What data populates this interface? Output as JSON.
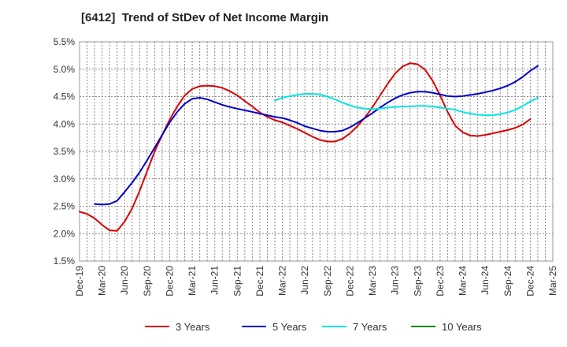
{
  "chart_data": {
    "type": "line",
    "title": "[6412]  Trend of StDev of Net Income Margin",
    "xlabel": "",
    "ylabel": "",
    "x_ticks": [
      "Dec-19",
      "Mar-20",
      "Jun-20",
      "Sep-20",
      "Dec-20",
      "Mar-21",
      "Jun-21",
      "Sep-21",
      "Dec-21",
      "Mar-22",
      "Jun-22",
      "Sep-22",
      "Dec-22",
      "Mar-23",
      "Jun-23",
      "Sep-23",
      "Dec-23",
      "Mar-24",
      "Jun-24",
      "Sep-24",
      "Dec-24",
      "Mar-25"
    ],
    "y_ticks": [
      "1.5%",
      "2.0%",
      "2.5%",
      "3.0%",
      "3.5%",
      "4.0%",
      "4.5%",
      "5.0%",
      "5.5%"
    ],
    "ylim": [
      1.5,
      5.5
    ],
    "y_unit": "%",
    "grid": true,
    "legend_position": "bottom",
    "series": [
      {
        "name": "3 Years",
        "color": "#dd0000",
        "points": [
          [
            "Dec-19",
            2.4
          ],
          [
            "Jan-20",
            2.36
          ],
          [
            "Feb-20",
            2.28
          ],
          [
            "Mar-20",
            2.16
          ],
          [
            "Apr-20",
            2.06
          ],
          [
            "May-20",
            2.05
          ],
          [
            "Jun-20",
            2.22
          ],
          [
            "Jul-20",
            2.46
          ],
          [
            "Aug-20",
            2.78
          ],
          [
            "Sep-20",
            3.14
          ],
          [
            "Oct-20",
            3.5
          ],
          [
            "Nov-20",
            3.8
          ],
          [
            "Dec-20",
            4.08
          ],
          [
            "Jan-21",
            4.32
          ],
          [
            "Feb-21",
            4.52
          ],
          [
            "Mar-21",
            4.64
          ],
          [
            "Apr-21",
            4.69
          ],
          [
            "May-21",
            4.7
          ],
          [
            "Jun-21",
            4.69
          ],
          [
            "Jul-21",
            4.66
          ],
          [
            "Aug-21",
            4.6
          ],
          [
            "Sep-21",
            4.52
          ],
          [
            "Oct-21",
            4.42
          ],
          [
            "Nov-21",
            4.32
          ],
          [
            "Dec-21",
            4.21
          ],
          [
            "Jan-22",
            4.13
          ],
          [
            "Feb-22",
            4.07
          ],
          [
            "Mar-22",
            4.03
          ],
          [
            "Apr-22",
            3.97
          ],
          [
            "May-22",
            3.91
          ],
          [
            "Jun-22",
            3.84
          ],
          [
            "Jul-22",
            3.77
          ],
          [
            "Aug-22",
            3.71
          ],
          [
            "Sep-22",
            3.68
          ],
          [
            "Oct-22",
            3.68
          ],
          [
            "Nov-22",
            3.73
          ],
          [
            "Dec-22",
            3.83
          ],
          [
            "Jan-23",
            3.96
          ],
          [
            "Feb-23",
            4.12
          ],
          [
            "Mar-23",
            4.31
          ],
          [
            "Apr-23",
            4.52
          ],
          [
            "May-23",
            4.73
          ],
          [
            "Jun-23",
            4.92
          ],
          [
            "Jul-23",
            5.05
          ],
          [
            "Aug-23",
            5.11
          ],
          [
            "Sep-23",
            5.09
          ],
          [
            "Oct-23",
            4.99
          ],
          [
            "Nov-23",
            4.79
          ],
          [
            "Dec-23",
            4.52
          ],
          [
            "Jan-24",
            4.22
          ],
          [
            "Feb-24",
            3.97
          ],
          [
            "Mar-24",
            3.85
          ],
          [
            "Apr-24",
            3.79
          ],
          [
            "May-24",
            3.78
          ],
          [
            "Jun-24",
            3.8
          ],
          [
            "Jul-24",
            3.83
          ],
          [
            "Aug-24",
            3.86
          ],
          [
            "Sep-24",
            3.89
          ],
          [
            "Oct-24",
            3.93
          ],
          [
            "Nov-24",
            3.99
          ],
          [
            "Dec-24",
            4.09
          ]
        ]
      },
      {
        "name": "5 Years",
        "color": "#0000cc",
        "points": [
          [
            "Feb-20",
            2.54
          ],
          [
            "Mar-20",
            2.53
          ],
          [
            "Apr-20",
            2.54
          ],
          [
            "May-20",
            2.6
          ],
          [
            "Jun-20",
            2.76
          ],
          [
            "Jul-20",
            2.93
          ],
          [
            "Aug-20",
            3.12
          ],
          [
            "Sep-20",
            3.34
          ],
          [
            "Oct-20",
            3.57
          ],
          [
            "Nov-20",
            3.8
          ],
          [
            "Dec-20",
            4.03
          ],
          [
            "Jan-21",
            4.22
          ],
          [
            "Feb-21",
            4.37
          ],
          [
            "Mar-21",
            4.46
          ],
          [
            "Apr-21",
            4.48
          ],
          [
            "May-21",
            4.45
          ],
          [
            "Jun-21",
            4.4
          ],
          [
            "Jul-21",
            4.35
          ],
          [
            "Aug-21",
            4.31
          ],
          [
            "Sep-21",
            4.28
          ],
          [
            "Oct-21",
            4.25
          ],
          [
            "Nov-21",
            4.22
          ],
          [
            "Dec-21",
            4.19
          ],
          [
            "Jan-22",
            4.16
          ],
          [
            "Feb-22",
            4.13
          ],
          [
            "Mar-22",
            4.11
          ],
          [
            "Apr-22",
            4.07
          ],
          [
            "May-22",
            4.02
          ],
          [
            "Jun-22",
            3.96
          ],
          [
            "Jul-22",
            3.92
          ],
          [
            "Aug-22",
            3.88
          ],
          [
            "Sep-22",
            3.86
          ],
          [
            "Oct-22",
            3.86
          ],
          [
            "Nov-22",
            3.88
          ],
          [
            "Dec-22",
            3.94
          ],
          [
            "Jan-23",
            4.02
          ],
          [
            "Feb-23",
            4.11
          ],
          [
            "Mar-23",
            4.2
          ],
          [
            "Apr-23",
            4.3
          ],
          [
            "May-23",
            4.39
          ],
          [
            "Jun-23",
            4.47
          ],
          [
            "Jul-23",
            4.53
          ],
          [
            "Aug-23",
            4.57
          ],
          [
            "Sep-23",
            4.59
          ],
          [
            "Oct-23",
            4.59
          ],
          [
            "Nov-23",
            4.57
          ],
          [
            "Dec-23",
            4.54
          ],
          [
            "Jan-24",
            4.51
          ],
          [
            "Feb-24",
            4.5
          ],
          [
            "Mar-24",
            4.51
          ],
          [
            "Apr-24",
            4.53
          ],
          [
            "May-24",
            4.55
          ],
          [
            "Jun-24",
            4.58
          ],
          [
            "Jul-24",
            4.61
          ],
          [
            "Aug-24",
            4.65
          ],
          [
            "Sep-24",
            4.7
          ],
          [
            "Oct-24",
            4.77
          ],
          [
            "Nov-24",
            4.86
          ],
          [
            "Dec-24",
            4.97
          ],
          [
            "Jan-25",
            5.06
          ]
        ]
      },
      {
        "name": "7 Years",
        "color": "#00e5e5",
        "points": [
          [
            "Feb-22",
            4.43
          ],
          [
            "Mar-22",
            4.48
          ],
          [
            "Apr-22",
            4.51
          ],
          [
            "May-22",
            4.53
          ],
          [
            "Jun-22",
            4.55
          ],
          [
            "Jul-22",
            4.55
          ],
          [
            "Aug-22",
            4.54
          ],
          [
            "Sep-22",
            4.5
          ],
          [
            "Oct-22",
            4.45
          ],
          [
            "Nov-22",
            4.39
          ],
          [
            "Dec-22",
            4.34
          ],
          [
            "Jan-23",
            4.3
          ],
          [
            "Feb-23",
            4.28
          ],
          [
            "Mar-23",
            4.27
          ],
          [
            "Apr-23",
            4.28
          ],
          [
            "May-23",
            4.3
          ],
          [
            "Jun-23",
            4.31
          ],
          [
            "Jul-23",
            4.32
          ],
          [
            "Aug-23",
            4.32
          ],
          [
            "Sep-23",
            4.33
          ],
          [
            "Oct-23",
            4.33
          ],
          [
            "Nov-23",
            4.32
          ],
          [
            "Dec-23",
            4.3
          ],
          [
            "Jan-24",
            4.28
          ],
          [
            "Feb-24",
            4.26
          ],
          [
            "Mar-24",
            4.22
          ],
          [
            "Apr-24",
            4.19
          ],
          [
            "May-24",
            4.17
          ],
          [
            "Jun-24",
            4.16
          ],
          [
            "Jul-24",
            4.16
          ],
          [
            "Aug-24",
            4.18
          ],
          [
            "Sep-24",
            4.21
          ],
          [
            "Oct-24",
            4.26
          ],
          [
            "Nov-24",
            4.33
          ],
          [
            "Dec-24",
            4.41
          ],
          [
            "Jan-25",
            4.48
          ]
        ]
      },
      {
        "name": "10 Years",
        "color": "#008800",
        "points": []
      }
    ]
  }
}
